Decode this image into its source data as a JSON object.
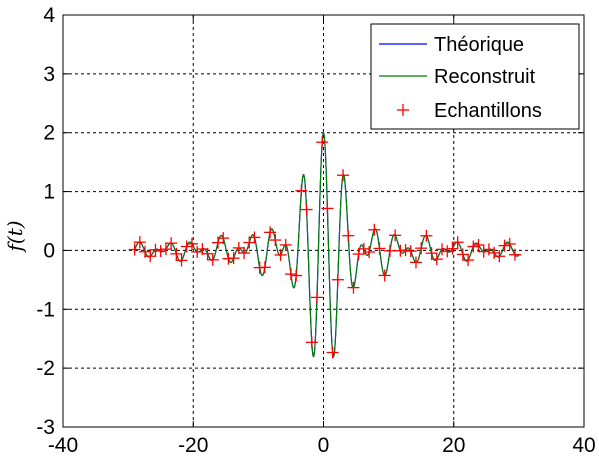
{
  "chart_data": {
    "type": "line",
    "title": "",
    "xlabel": "",
    "ylabel": "f(t)",
    "xlim": [
      -40,
      40
    ],
    "ylim": [
      -3,
      4
    ],
    "xticks": [
      -40,
      -20,
      0,
      20,
      40
    ],
    "yticks": [
      -3,
      -2,
      -1,
      0,
      1,
      2,
      3,
      4
    ],
    "xtick_labels": [
      "-40",
      "-20",
      "0",
      "20",
      "40"
    ],
    "ytick_labels": [
      "-3",
      "-2",
      "-1",
      "0",
      "1",
      "2",
      "3",
      "4"
    ],
    "grid": true,
    "legend_position": "top-right",
    "series": [
      {
        "name": "Théorique",
        "color": "#0000ff",
        "style": "line",
        "formula": "f(t) = 2*sin(t/2)/(t/2) * cos(2*t)",
        "x_range": [
          -29,
          30
        ],
        "samples": 1200
      },
      {
        "name": "Reconstruit",
        "color": "#008000",
        "style": "line",
        "formula": "f(t) = 2*sin(t/2)/(t/2) * cos(2*t)",
        "x_range": [
          -29,
          30
        ],
        "samples": 1200
      },
      {
        "name": "Echantillons",
        "color": "#ff0000",
        "style": "marker-plus",
        "x": [
          -29,
          -28.2,
          -27.4,
          -26.6,
          -25.8,
          -25,
          -24.2,
          -23.4,
          -22.6,
          -21.8,
          -21,
          -20.2,
          -19.4,
          -18.6,
          -17.8,
          -17,
          -16.2,
          -15.4,
          -14.6,
          -13.8,
          -13,
          -12.2,
          -11.4,
          -10.6,
          -9.8,
          -9,
          -8.2,
          -7.4,
          -6.6,
          -5.8,
          -5,
          -4.2,
          -3.4,
          -2.6,
          -1.8,
          -1,
          -0.2,
          0.6,
          1.4,
          2.2,
          3,
          3.8,
          4.6,
          5.4,
          6.2,
          7,
          7.8,
          8.6,
          9.4,
          10.2,
          11,
          11.8,
          12.6,
          13.4,
          14.2,
          15,
          15.8,
          16.6,
          17.4,
          18.2,
          19,
          19.8,
          20.6,
          21.4,
          22.2,
          23,
          23.8,
          24.6,
          25.4,
          26.2,
          27,
          27.8,
          28.6,
          29.4
        ],
        "formula": "f(t) = 2*sin(t/2)/(t/2) * cos(2*t)"
      }
    ]
  }
}
